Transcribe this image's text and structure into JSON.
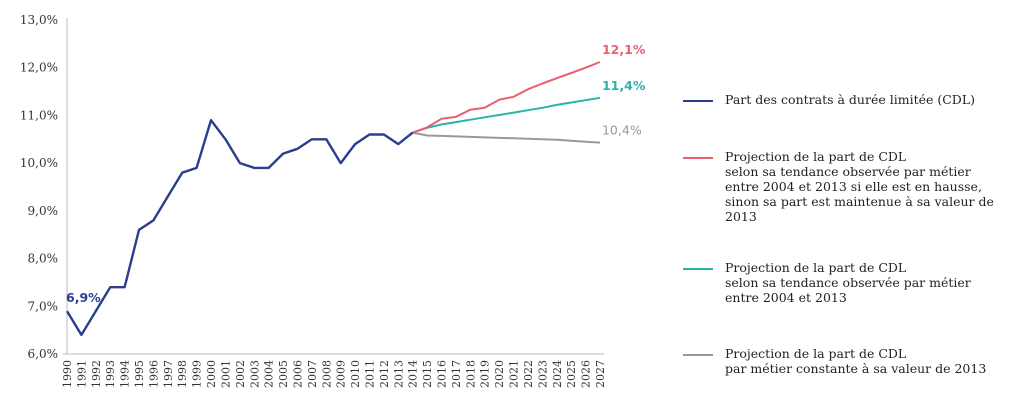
{
  "chart_data": {
    "type": "line",
    "ylim": [
      6.0,
      13.0
    ],
    "y_ticks": [
      "6,0%",
      "7,0%",
      "8,0%",
      "9,0%",
      "10,0%",
      "11,0%",
      "12,0%",
      "13,0%"
    ],
    "x_ticks": [
      "1990",
      "1991",
      "1992",
      "1993",
      "1994",
      "1995",
      "1996",
      "1997",
      "1998",
      "1999",
      "2000",
      "2001",
      "2002",
      "2003",
      "2004",
      "2005",
      "2006",
      "2007",
      "2008",
      "2009",
      "2010",
      "2011",
      "2012",
      "2013",
      "2014",
      "2015",
      "2016",
      "2017",
      "2018",
      "2019",
      "2020",
      "2021",
      "2022",
      "2023",
      "2024",
      "2025",
      "2026",
      "2027"
    ],
    "grid": false,
    "legend_placement": "right",
    "series": [
      {
        "name": "Part des contrats à durée limitée (CDL)",
        "color": "#2b3d8f",
        "x": [
          1990,
          1991,
          1992,
          1993,
          1994,
          1995,
          1996,
          1997,
          1998,
          1999,
          2000,
          2001,
          2002,
          2003,
          2004,
          2005,
          2006,
          2007,
          2008,
          2009,
          2010,
          2011,
          2012,
          2013,
          2014
        ],
        "values": [
          6.9,
          6.4,
          6.9,
          7.4,
          7.4,
          8.6,
          8.8,
          9.3,
          9.8,
          9.9,
          10.9,
          10.5,
          10.0,
          9.9,
          9.9,
          10.2,
          10.3,
          10.5,
          10.5,
          10.0,
          10.4,
          10.6,
          10.6,
          10.4,
          10.64
        ],
        "label": "6,9%",
        "label_year": 1990,
        "label_value": 6.9
      },
      {
        "name": "Projection de la part de CDL\nselon sa tendance observée par métier\nentre 2004 et 2013 si elle est en hausse,\nsinon sa part est maintenue à sa valeur de 2013",
        "color": "#e8606e",
        "x": [
          2014,
          2015,
          2016,
          2017,
          2018,
          2019,
          2020,
          2021,
          2022,
          2023,
          2024,
          2025,
          2026,
          2027
        ],
        "values": [
          10.64,
          10.75,
          10.93,
          10.97,
          11.12,
          11.16,
          11.33,
          11.39,
          11.55,
          11.67,
          11.78,
          11.89,
          12.0,
          12.12
        ],
        "label": "12,1%",
        "label_year": 2027,
        "label_value": 12.12
      },
      {
        "name": "Projection de la part de CDL\nselon sa tendance observée par métier\nentre 2004 et 2013",
        "color": "#2bb3a8",
        "x": [
          2014,
          2015,
          2016,
          2017,
          2018,
          2019,
          2020,
          2021,
          2022,
          2023,
          2024,
          2025,
          2026,
          2027
        ],
        "values": [
          10.64,
          10.74,
          10.81,
          10.86,
          10.91,
          10.96,
          11.01,
          11.06,
          11.11,
          11.16,
          11.22,
          11.27,
          11.32,
          11.37
        ],
        "label": "11,4%",
        "label_year": 2027,
        "label_value": 11.37
      },
      {
        "name": "Projection de la part de CDL\npar métier constante à sa valeur de 2013",
        "color": "#999999",
        "x": [
          2014,
          2015,
          2016,
          2017,
          2018,
          2019,
          2020,
          2021,
          2022,
          2023,
          2024,
          2025,
          2026,
          2027
        ],
        "values": [
          10.64,
          10.58,
          10.57,
          10.56,
          10.55,
          10.54,
          10.53,
          10.52,
          10.51,
          10.5,
          10.49,
          10.47,
          10.45,
          10.43
        ],
        "label": "10,4%",
        "label_year": 2027,
        "label_value": 10.43
      }
    ]
  }
}
